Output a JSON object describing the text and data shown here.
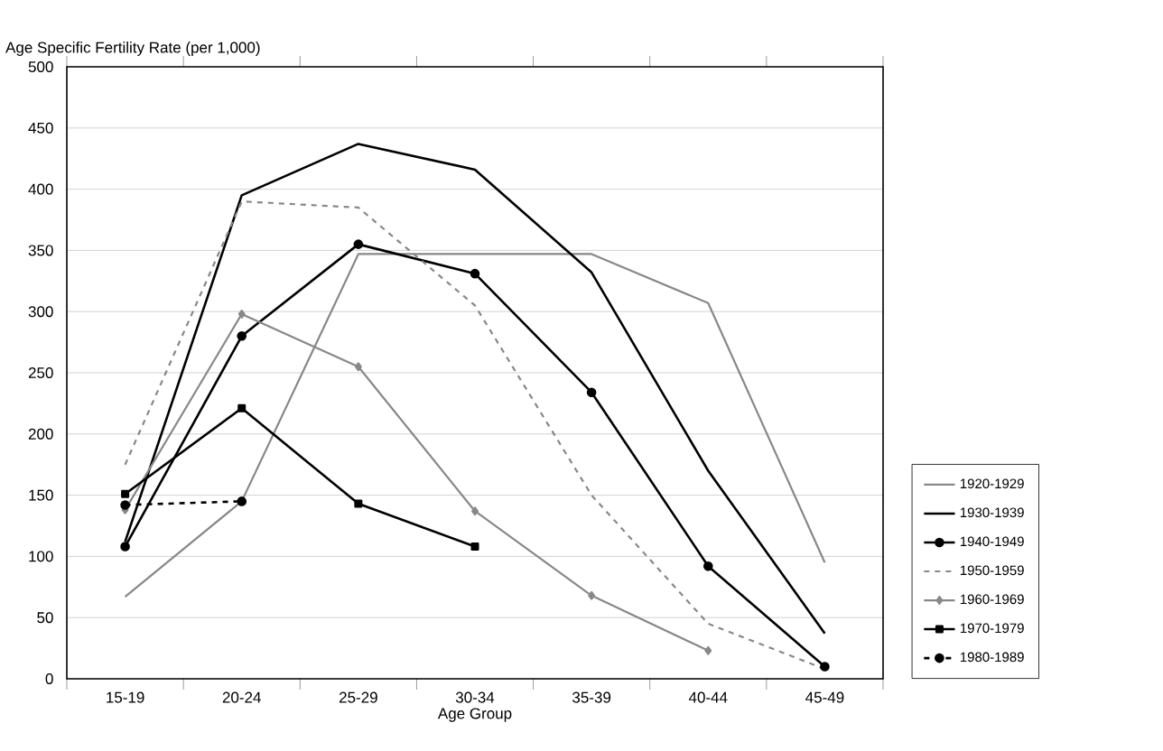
{
  "chart_data": {
    "type": "line",
    "ylabel": "Age Specific Fertility Rate (per 1,000)",
    "xlabel": "Age Group",
    "categories": [
      "15-19",
      "20-24",
      "25-29",
      "30-34",
      "35-39",
      "40-44",
      "45-49"
    ],
    "ylim": [
      0,
      500
    ],
    "yticks": [
      0,
      50,
      100,
      150,
      200,
      250,
      300,
      350,
      400,
      450,
      500
    ],
    "grid": "y",
    "legend": "right",
    "series": [
      {
        "name": "1920-1929",
        "color": "#888888",
        "marker": "none",
        "line_style": "solid",
        "values": [
          67,
          145,
          347,
          347,
          347,
          307,
          95
        ]
      },
      {
        "name": "1930-1939",
        "color": "#000000",
        "marker": "none",
        "line_style": "solid",
        "values": [
          112,
          395,
          437,
          416,
          332,
          170,
          37
        ]
      },
      {
        "name": "1940-1949",
        "color": "#000000",
        "marker": "circle",
        "line_style": "solid",
        "values": [
          108,
          280,
          355,
          331,
          234,
          92,
          10
        ]
      },
      {
        "name": "1950-1959",
        "color": "#888888",
        "marker": "none",
        "line_style": "dashed",
        "values": [
          175,
          390,
          385,
          305,
          150,
          45,
          8
        ]
      },
      {
        "name": "1960-1969",
        "color": "#888888",
        "marker": "diamond",
        "line_style": "solid",
        "values": [
          138,
          298,
          255,
          137,
          68,
          23,
          null
        ]
      },
      {
        "name": "1970-1979",
        "color": "#000000",
        "marker": "square",
        "line_style": "solid",
        "values": [
          151,
          221,
          143,
          108,
          null,
          null,
          null
        ]
      },
      {
        "name": "1980-1989",
        "color": "#000000",
        "marker": "circle",
        "line_style": "dashed",
        "values": [
          142,
          145,
          null,
          null,
          null,
          null,
          null
        ]
      }
    ]
  }
}
